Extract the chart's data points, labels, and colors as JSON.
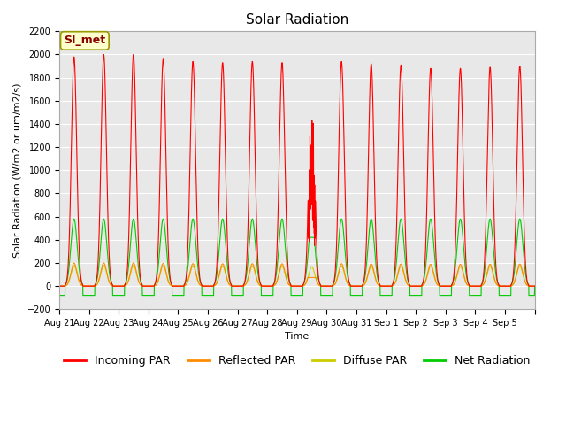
{
  "title": "Solar Radiation",
  "xlabel": "Time",
  "ylabel": "Solar Radiation (W/m2 or um/m2/s)",
  "ylim": [
    -200,
    2200
  ],
  "yticks": [
    -200,
    0,
    200,
    400,
    600,
    800,
    1000,
    1200,
    1400,
    1600,
    1800,
    2000,
    2200
  ],
  "background_color": "#e8e8e8",
  "annotation_text": "SI_met",
  "annotation_color": "#8b0000",
  "annotation_bg": "#ffffcc",
  "annotation_border": "#999900",
  "series": {
    "Incoming PAR": {
      "color": "#ff0000"
    },
    "Reflected PAR": {
      "color": "#ff8c00"
    },
    "Diffuse PAR": {
      "color": "#cccc00"
    },
    "Net Radiation": {
      "color": "#00cc00"
    }
  },
  "x_tick_labels": [
    "Aug 21",
    "Aug 22",
    "Aug 23",
    "Aug 24",
    "Aug 25",
    "Aug 26",
    "Aug 27",
    "Aug 28",
    "Aug 29",
    "Aug 30",
    "Aug 31",
    "Sep 1",
    "Sep 2",
    "Sep 3",
    "Sep 4",
    "Sep 5"
  ],
  "num_days": 16,
  "title_fontsize": 11,
  "axis_fontsize": 8,
  "tick_fontsize": 7,
  "legend_fontsize": 9
}
